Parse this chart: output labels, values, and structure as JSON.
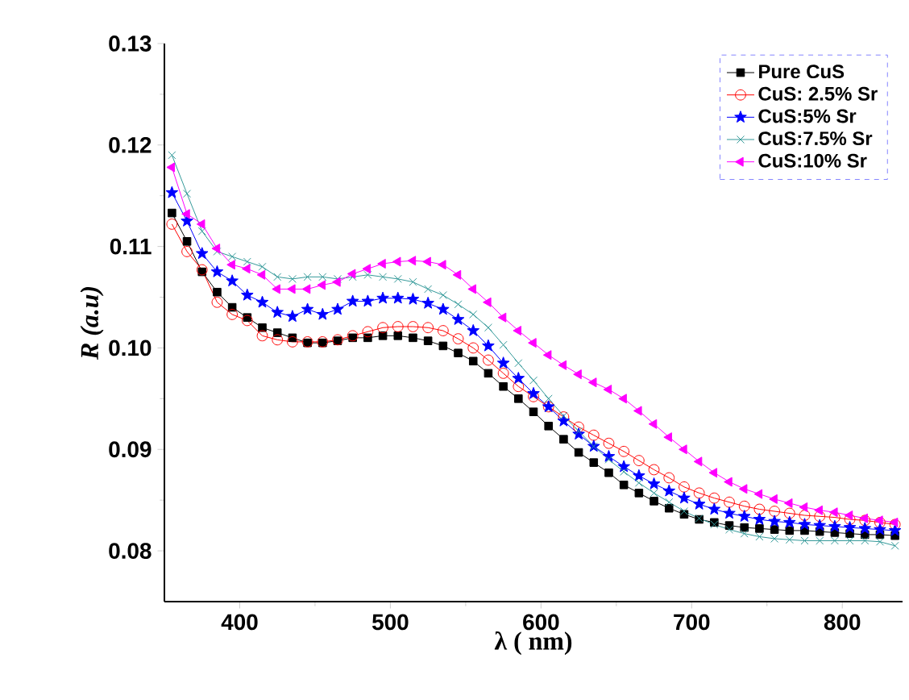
{
  "chart_data": {
    "type": "line",
    "xlabel": "λ ( nm)",
    "ylabel": "*R (a.u)*",
    "x": [
      355,
      365,
      375,
      385,
      395,
      405,
      415,
      425,
      435,
      445,
      455,
      465,
      475,
      485,
      495,
      505,
      515,
      525,
      535,
      545,
      555,
      565,
      575,
      585,
      595,
      605,
      615,
      625,
      635,
      645,
      655,
      665,
      675,
      685,
      695,
      705,
      715,
      725,
      735,
      745,
      755,
      765,
      775,
      785,
      795,
      805,
      815,
      825,
      835
    ],
    "xlim": [
      350,
      840
    ],
    "xticks": [
      400,
      500,
      600,
      700,
      800
    ],
    "ylim": [
      0.075,
      0.13
    ],
    "yticks": [
      0.08,
      0.09,
      {
        "value": 0.1,
        "label": "0.10"
      },
      0.11,
      0.12,
      0.13
    ],
    "legend": "top right",
    "grid": false,
    "line_style": "solid",
    "series": [
      {
        "name": "Pure CuS",
        "color": "#000000",
        "marker": "square",
        "values": [
          0.1133,
          0.1105,
          0.1075,
          0.1055,
          0.104,
          0.103,
          0.102,
          0.1015,
          0.101,
          0.1005,
          0.1005,
          0.1007,
          0.101,
          0.101,
          0.1012,
          0.1012,
          0.101,
          0.1007,
          0.1002,
          0.0995,
          0.0987,
          0.0975,
          0.0962,
          0.095,
          0.0937,
          0.0923,
          0.091,
          0.0897,
          0.0887,
          0.0877,
          0.0865,
          0.0857,
          0.0849,
          0.0842,
          0.0836,
          0.0831,
          0.0828,
          0.0825,
          0.0823,
          0.0822,
          0.0821,
          0.082,
          0.082,
          0.0819,
          0.0818,
          0.0817,
          0.0816,
          0.0816,
          0.0815
        ]
      },
      {
        "name": "CuS: 2.5% Sr",
        "color": "#ff0000",
        "marker": "circle",
        "values": [
          0.1122,
          0.1095,
          0.1077,
          0.1045,
          0.1033,
          0.1027,
          0.1012,
          0.1008,
          0.1006,
          0.1006,
          0.1006,
          0.1008,
          0.1012,
          0.1016,
          0.102,
          0.1021,
          0.1021,
          0.102,
          0.1017,
          0.1009,
          0.1,
          0.0988,
          0.0975,
          0.0962,
          0.0952,
          0.0942,
          0.0932,
          0.0922,
          0.0914,
          0.0906,
          0.0898,
          0.0889,
          0.088,
          0.0872,
          0.0863,
          0.0857,
          0.0852,
          0.0848,
          0.0844,
          0.0841,
          0.0839,
          0.0837,
          0.0835,
          0.0834,
          0.0833,
          0.0831,
          0.083,
          0.0828,
          0.0826
        ]
      },
      {
        "name": "CuS:5% Sr",
        "color": "#0000ff",
        "marker": "star",
        "values": [
          0.1153,
          0.1125,
          0.1093,
          0.1075,
          0.1066,
          0.1052,
          0.1045,
          0.1035,
          0.1031,
          0.1038,
          0.1033,
          0.1038,
          0.1046,
          0.1046,
          0.1049,
          0.1049,
          0.1048,
          0.1044,
          0.1038,
          0.1028,
          0.1017,
          0.1002,
          0.0985,
          0.097,
          0.0955,
          0.0942,
          0.0928,
          0.0915,
          0.0903,
          0.0893,
          0.0883,
          0.0874,
          0.0866,
          0.0859,
          0.0852,
          0.0846,
          0.0841,
          0.0837,
          0.0834,
          0.0831,
          0.0829,
          0.0828,
          0.0826,
          0.0825,
          0.0824,
          0.0823,
          0.0822,
          0.0821,
          0.082
        ]
      },
      {
        "name": "CuS:7.5% Sr",
        "color": "#339999",
        "marker": "cross",
        "values": [
          0.119,
          0.1152,
          0.1115,
          0.1095,
          0.109,
          0.1085,
          0.108,
          0.107,
          0.1068,
          0.107,
          0.107,
          0.1068,
          0.107,
          0.1072,
          0.107,
          0.1068,
          0.1065,
          0.1058,
          0.1052,
          0.1043,
          0.1033,
          0.102,
          0.1003,
          0.0985,
          0.0968,
          0.095,
          0.0933,
          0.0918,
          0.0903,
          0.089,
          0.0878,
          0.0867,
          0.0857,
          0.0848,
          0.0839,
          0.0832,
          0.0826,
          0.0821,
          0.0817,
          0.0814,
          0.0812,
          0.0811,
          0.081,
          0.081,
          0.081,
          0.081,
          0.081,
          0.0809,
          0.0805
        ]
      },
      {
        "name": "CuS:10% Sr",
        "color": "#ff00ff",
        "marker": "triangle",
        "values": [
          0.1178,
          0.1132,
          0.1122,
          0.1098,
          0.1082,
          0.1078,
          0.1072,
          0.1058,
          0.1058,
          0.1058,
          0.1062,
          0.1065,
          0.1073,
          0.1078,
          0.1083,
          0.1085,
          0.1086,
          0.1085,
          0.1082,
          0.1072,
          0.1058,
          0.1045,
          0.103,
          0.1017,
          0.1005,
          0.0993,
          0.0983,
          0.0974,
          0.0966,
          0.0959,
          0.095,
          0.0938,
          0.0925,
          0.0912,
          0.09,
          0.0888,
          0.0877,
          0.0868,
          0.0861,
          0.0856,
          0.0851,
          0.0847,
          0.0843,
          0.084,
          0.0838,
          0.0835,
          0.0832,
          0.083,
          0.0828
        ]
      }
    ]
  }
}
